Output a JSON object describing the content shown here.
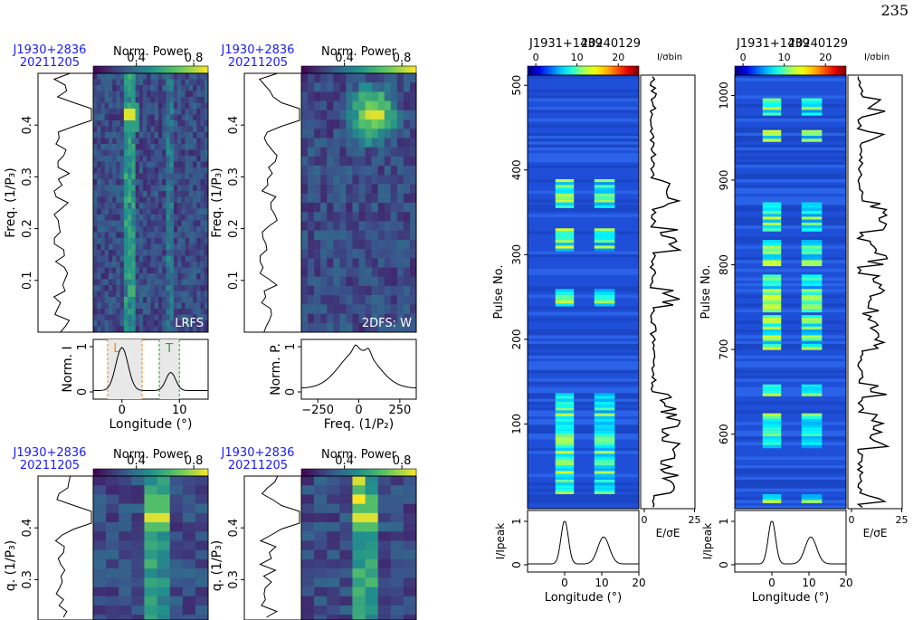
{
  "page": {
    "number": "235"
  },
  "colors": {
    "psr_label": "#1a1aff",
    "on_window": "#ff7f0e",
    "off_window": "#2ca02c",
    "band": "#e8e8e8"
  },
  "chart_data": [
    {
      "type": "heatmap",
      "subtype": "LRFS",
      "psr_name": "J1930+2836",
      "date": "20211205",
      "colorbar_label": "Norm. Power",
      "colorbar_ticks": [
        "0.4",
        "0.8"
      ],
      "panel_label": "LRFS",
      "ylabel": "Freq. (1/P₃)",
      "yticks": [
        "0.1",
        "0.2",
        "0.3",
        "0.4"
      ],
      "ylim": [
        0,
        0.5
      ],
      "bottom": {
        "ylabel": "Norm. I",
        "yticks": [
          "0",
          "1"
        ],
        "xlabel": "Longitude (°)",
        "xticks": [
          "0",
          "10"
        ],
        "xlim": [
          -5,
          15
        ],
        "windows": [
          {
            "label": "L",
            "range": [
              -2.5,
              3.5
            ]
          },
          {
            "label": "T",
            "range": [
              6.5,
              10
            ]
          }
        ]
      }
    },
    {
      "type": "heatmap",
      "subtype": "2DFS",
      "psr_name": "J1930+2836",
      "date": "20211205",
      "colorbar_label": "Norm. Power",
      "colorbar_ticks": [
        "0.4",
        "0.8"
      ],
      "panel_label": "2DFS: W",
      "ylabel": "Freq. (1/P₃)",
      "yticks": [
        "0.1",
        "0.2",
        "0.3",
        "0.4"
      ],
      "ylim": [
        0,
        0.5
      ],
      "bottom": {
        "ylabel": "Norm. P.",
        "yticks": [
          "0",
          "1"
        ],
        "xlabel": "Freq. (1/P₂)",
        "xticks": [
          "−250",
          "0",
          "250"
        ],
        "xlim": [
          -350,
          350
        ]
      }
    },
    {
      "type": "heatmap",
      "subtype": "2DFS",
      "psr_name": "J1930+2836",
      "date": "20211205",
      "colorbar_label": "Norm. Power",
      "colorbar_ticks": [
        "0.4",
        "0.8"
      ],
      "ylabel": "q. (1/P₃)",
      "yticks": [
        "0.3",
        "0.4"
      ]
    },
    {
      "type": "heatmap",
      "subtype": "2DFS",
      "psr_name": "J1930+2836",
      "date": "20211205",
      "colorbar_label": "Norm. Power",
      "colorbar_ticks": [
        "0.4",
        "0.8"
      ],
      "ylabel": "q. (1/P₃)",
      "yticks": [
        "0.3",
        "0.4"
      ]
    },
    {
      "type": "heatmap",
      "subtype": "pulse_stack",
      "psr_name": "J1931+1439",
      "date": "20240129",
      "colorbar_ticks": [
        "0",
        "10",
        "20"
      ],
      "colorbar_label": "I/σbin",
      "ylabel": "Pulse No.",
      "yticks": [
        "100",
        "200",
        "300",
        "400",
        "500"
      ],
      "ylim": [
        0,
        512
      ],
      "xlabel": "Longitude (°)",
      "xticks": [
        "0",
        "10",
        "20"
      ],
      "xlim": [
        -10,
        20
      ],
      "profile_ylabel": "I/Ipeak",
      "profile_yticks": [
        "0",
        "1"
      ],
      "energy_xlabel": "E/σE",
      "energy_xticks": [
        "0",
        "25"
      ]
    },
    {
      "type": "heatmap",
      "subtype": "pulse_stack",
      "psr_name": "J1931+1439",
      "date": "20240129",
      "colorbar_ticks": [
        "0",
        "10",
        "20"
      ],
      "colorbar_label": "I/σbin",
      "ylabel": "Pulse No.",
      "yticks": [
        "600",
        "700",
        "800",
        "900",
        "1000"
      ],
      "ylim": [
        512,
        1024
      ],
      "xlabel": "Longitude (°)",
      "xticks": [
        "0",
        "10",
        "20"
      ],
      "xlim": [
        -10,
        20
      ],
      "profile_ylabel": "I/Ipeak",
      "profile_yticks": [
        "0",
        "1"
      ],
      "energy_xlabel": "E/σE",
      "energy_xticks": [
        "0",
        "25"
      ]
    }
  ]
}
